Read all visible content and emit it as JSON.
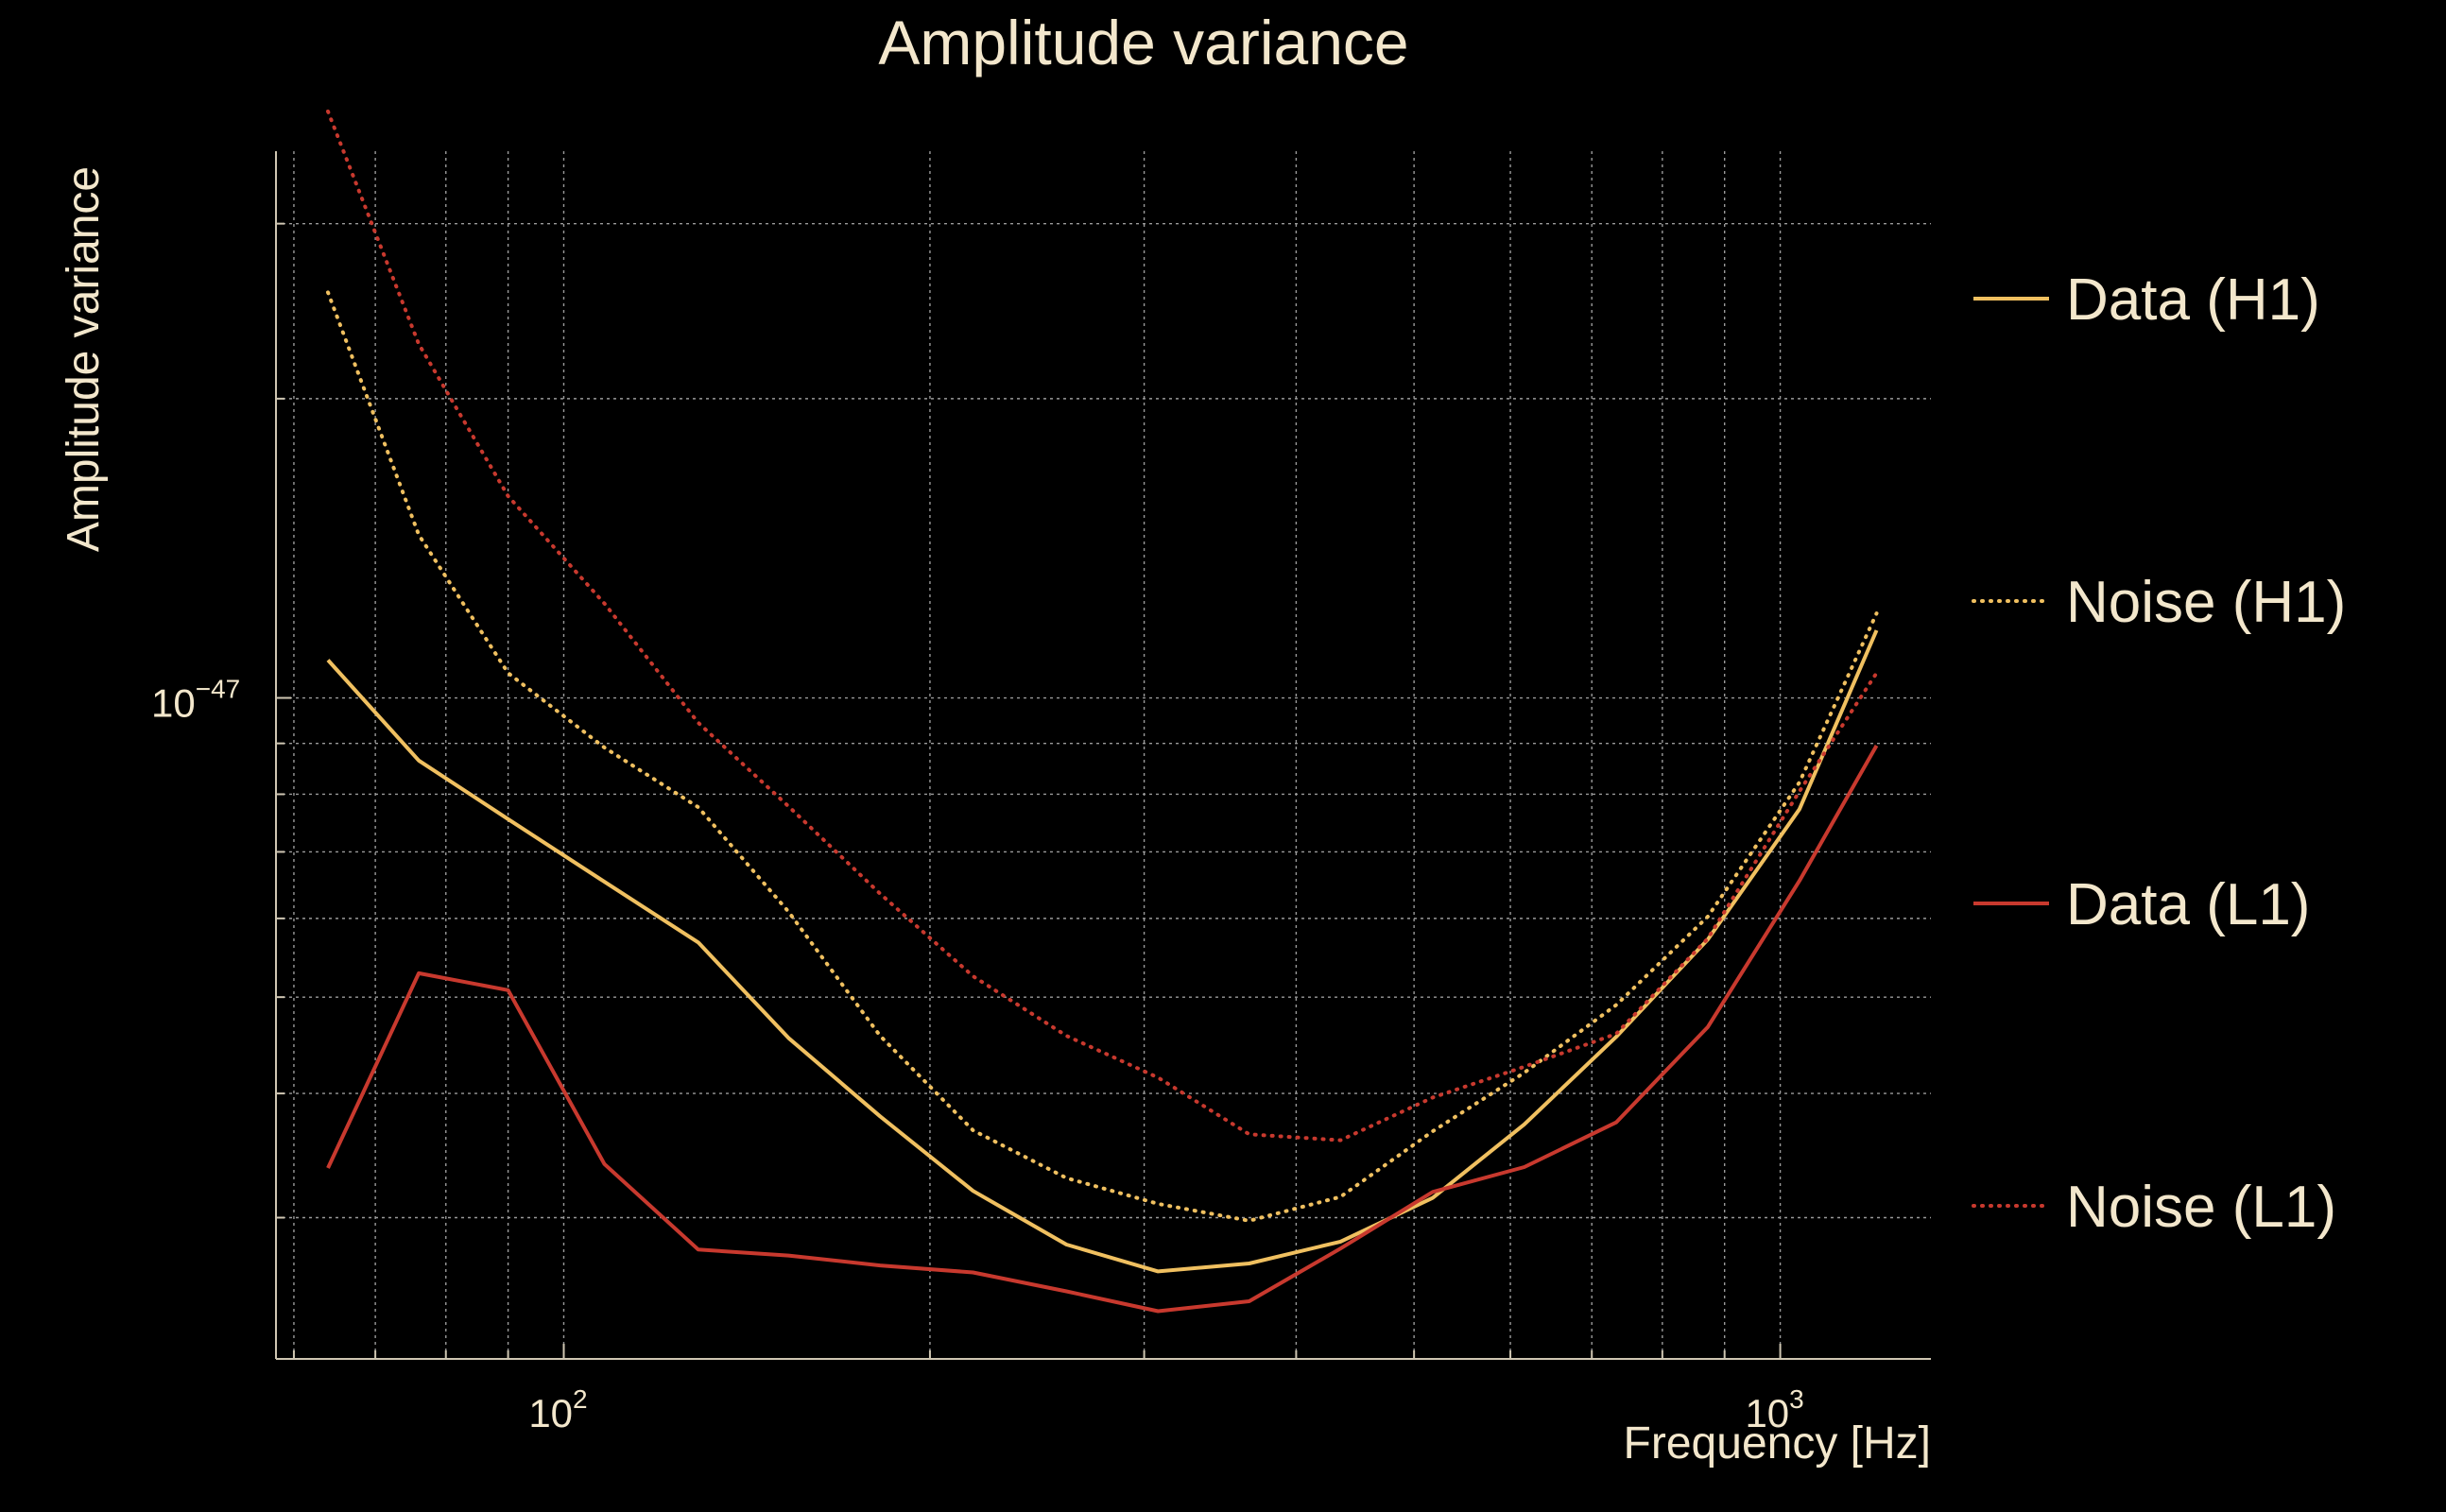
{
  "chart_data": {
    "type": "line",
    "title": "Amplitude variance",
    "xlabel": "Frequency [Hz]",
    "ylabel": "Amplitude variance",
    "xscale": "log",
    "yscale": "log",
    "xlim": [
      58,
      1330
    ],
    "ylim_log10": [
      -47.665,
      -46.45
    ],
    "grid": true,
    "legend_position": "right",
    "x_ticks": [
      {
        "value": 100,
        "base": "10",
        "exp": "2"
      },
      {
        "value": 1000,
        "base": "10",
        "exp": "3"
      }
    ],
    "y_ticks": [
      {
        "log10": -47,
        "base": "10",
        "exp": "−47"
      }
    ],
    "series": [
      {
        "name": "Data (H1)",
        "color": "#f0c060",
        "style": "solid",
        "x": [
          64,
          76,
          90,
          108,
          129,
          153,
          182,
          217,
          259,
          308,
          366,
          435,
          518,
          616,
          733,
          872,
          1037,
          1200
        ],
        "log10_y": [
          -46.962,
          -47.063,
          -47.122,
          -47.185,
          -47.246,
          -47.342,
          -47.421,
          -47.496,
          -47.55,
          -47.577,
          -47.569,
          -47.547,
          -47.503,
          -47.429,
          -47.341,
          -47.243,
          -47.112,
          -46.932
        ]
      },
      {
        "name": "Noise (H1)",
        "color": "#f0c060",
        "style": "dotted",
        "x": [
          64,
          76,
          90,
          108,
          129,
          153,
          182,
          217,
          259,
          308,
          366,
          435,
          518,
          616,
          733,
          872,
          1037,
          1200
        ],
        "log10_y": [
          -46.592,
          -46.836,
          -46.975,
          -47.05,
          -47.11,
          -47.215,
          -47.34,
          -47.435,
          -47.483,
          -47.509,
          -47.526,
          -47.502,
          -47.436,
          -47.377,
          -47.309,
          -47.22,
          -47.085,
          -46.915
        ]
      },
      {
        "name": "Data (L1)",
        "color": "#c8392e",
        "style": "solid",
        "x": [
          64,
          76,
          90,
          108,
          129,
          153,
          182,
          217,
          259,
          308,
          366,
          435,
          518,
          616,
          733,
          872,
          1037,
          1200
        ],
        "log10_y": [
          -47.473,
          -47.277,
          -47.294,
          -47.469,
          -47.555,
          -47.561,
          -47.571,
          -47.578,
          -47.597,
          -47.617,
          -47.607,
          -47.554,
          -47.497,
          -47.472,
          -47.427,
          -47.331,
          -47.184,
          -47.048
        ]
      },
      {
        "name": "Noise (L1)",
        "color": "#c8392e",
        "style": "dotted",
        "x": [
          64,
          76,
          90,
          108,
          129,
          153,
          182,
          217,
          259,
          308,
          366,
          435,
          518,
          616,
          733,
          872,
          1037,
          1200
        ],
        "log10_y": [
          -46.41,
          -46.644,
          -46.797,
          -46.905,
          -47.025,
          -47.109,
          -47.197,
          -47.28,
          -47.34,
          -47.382,
          -47.439,
          -47.445,
          -47.402,
          -47.371,
          -47.338,
          -47.242,
          -47.094,
          -46.975
        ]
      }
    ]
  }
}
